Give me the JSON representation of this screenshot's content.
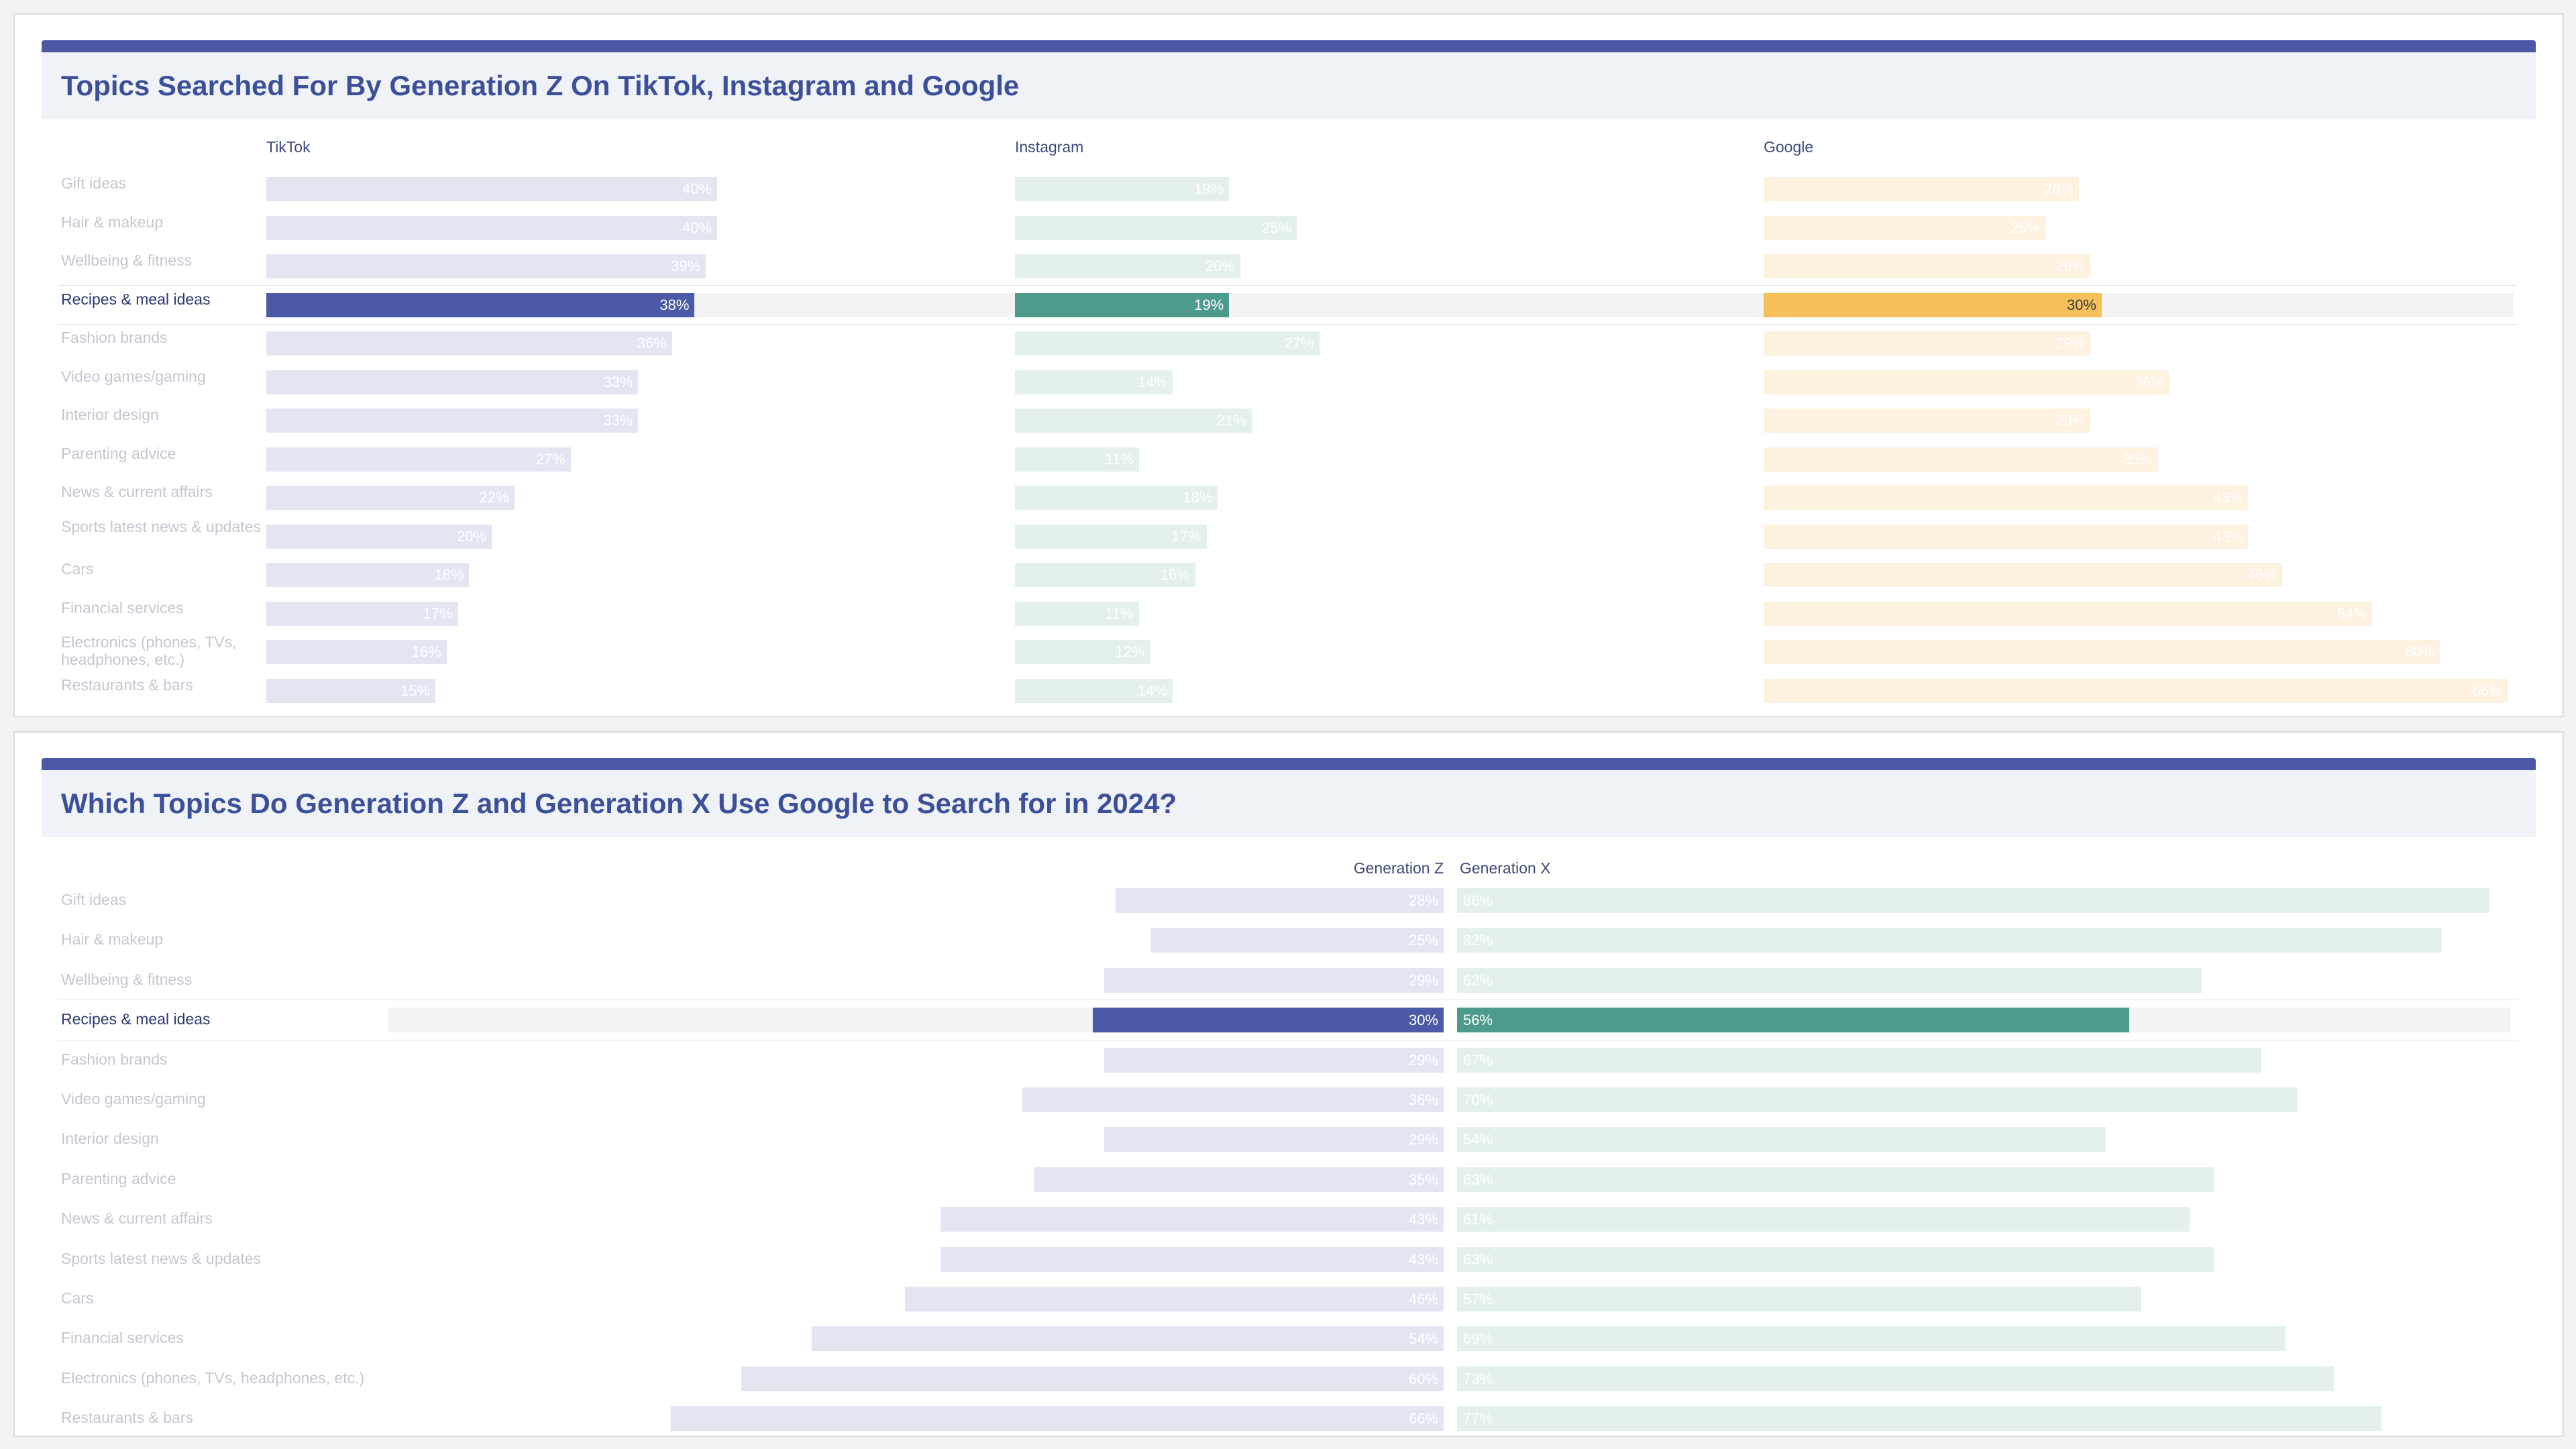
{
  "colors": {
    "tiktok": "#4b5aa6",
    "tiktok_light": "#e3e6f1",
    "instagram": "#4d9b8a",
    "instagram_light": "#e4f0ec",
    "google": "#f5bf5a",
    "google_light": "#fdf1e0",
    "genz": "#4b5aa6",
    "genz_light": "#e3e6f1",
    "genx": "#4d9b8a",
    "genx_light": "#e4f0ec"
  },
  "chart1": {
    "title": "Topics Searched For By Generation Z On TikTok, Instagram and Google",
    "headers": [
      "TikTok",
      "Instagram",
      "Google"
    ],
    "highlight_index": 3
  },
  "chart2": {
    "title": "Which Topics Do Generation Z and Generation X Use Google to Search for in 2024?",
    "headers": [
      "Generation Z",
      "Generation X"
    ],
    "highlight_index": 3
  },
  "chart_data": [
    {
      "type": "bar",
      "title": "Topics Searched For By Generation Z On TikTok, Instagram and Google",
      "categories": [
        "Gift ideas",
        "Hair & makeup",
        "Wellbeing & fitness",
        "Recipes & meal ideas",
        "Fashion brands",
        "Video games/gaming",
        "Interior design",
        "Parenting advice",
        "News & current affairs",
        "Sports latest news & updates",
        "Cars",
        "Financial services",
        "Electronics (phones, TVs, headphones, etc.)",
        "Restaurants & bars"
      ],
      "series": [
        {
          "name": "TikTok",
          "values": [
            40,
            40,
            39,
            38,
            36,
            33,
            33,
            27,
            22,
            20,
            18,
            17,
            16,
            15
          ]
        },
        {
          "name": "Instagram",
          "values": [
            19,
            25,
            20,
            19,
            27,
            14,
            21,
            11,
            18,
            17,
            16,
            11,
            12,
            14
          ]
        },
        {
          "name": "Google",
          "values": [
            28,
            25,
            29,
            30,
            29,
            36,
            29,
            35,
            43,
            43,
            46,
            54,
            60,
            66
          ]
        }
      ],
      "value_suffix": "%",
      "labels": [
        "40%",
        "40%",
        "39%",
        "38%",
        "36%",
        "33%",
        "33%",
        "27%",
        "22%",
        "20%",
        "18%",
        "17%",
        "16%",
        "15%",
        "19%",
        "25%",
        "20%",
        "19%",
        "27%",
        "14%",
        "21%",
        "11%",
        "18%",
        "17%",
        "16%",
        "11%",
        "12%",
        "14%",
        "28%",
        "25%",
        "29%",
        "30%",
        "29%",
        "36%",
        "29%",
        "35%",
        "43%",
        "43%",
        "46%",
        "54%",
        "60%",
        "66%"
      ]
    },
    {
      "type": "bar",
      "title": "Which Topics Do Generation Z and Generation X Use Google to Search for in 2024?",
      "categories": [
        "Gift ideas",
        "Hair & makeup",
        "Wellbeing & fitness",
        "Recipes & meal ideas",
        "Fashion brands",
        "Video games/gaming",
        "Interior design",
        "Parenting advice",
        "News & current affairs",
        "Sports latest news & updates",
        "Cars",
        "Financial services",
        "Electronics (phones, TVs, headphones, etc.)",
        "Restaurants & bars"
      ],
      "series": [
        {
          "name": "Generation Z",
          "values": [
            28,
            25,
            29,
            30,
            29,
            36,
            29,
            35,
            43,
            43,
            46,
            54,
            60,
            66
          ]
        },
        {
          "name": "Generation X",
          "values": [
            86,
            82,
            62,
            56,
            67,
            70,
            54,
            63,
            61,
            63,
            57,
            69,
            73,
            77
          ]
        }
      ],
      "value_suffix": "%",
      "labels": [
        "28%",
        "25%",
        "29%",
        "30%",
        "29%",
        "36%",
        "29%",
        "35%",
        "43%",
        "43%",
        "46%",
        "54%",
        "60%",
        "66%",
        "86%",
        "82%",
        "62%",
        "56%",
        "67%",
        "70%",
        "54%",
        "63%",
        "61%",
        "63%",
        "57%",
        "69%",
        "73%",
        "77%"
      ]
    }
  ]
}
